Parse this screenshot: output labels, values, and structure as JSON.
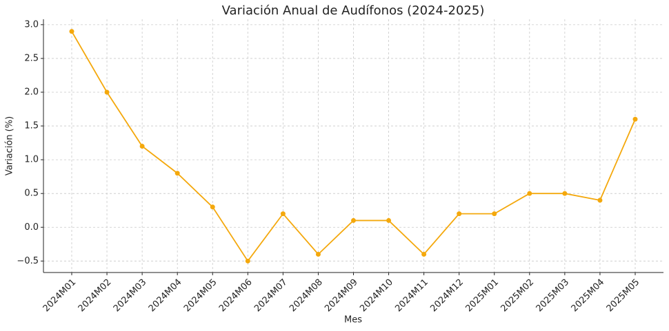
{
  "chart_data": {
    "type": "line",
    "title": "Variación Anual de Audífonos (2024-2025)",
    "x_label": "Mes",
    "y_label": "Variación (%)",
    "categories": [
      "2024M01",
      "2024M02",
      "2024M03",
      "2024M04",
      "2024M05",
      "2024M06",
      "2024M07",
      "2024M08",
      "2024M09",
      "2024M10",
      "2024M11",
      "2024M12",
      "2025M01",
      "2025M02",
      "2025M03",
      "2025M04",
      "2025M05"
    ],
    "values": [
      2.9,
      2.0,
      1.2,
      0.8,
      0.3,
      -0.5,
      0.2,
      -0.4,
      0.1,
      0.1,
      -0.4,
      0.2,
      0.2,
      0.5,
      0.5,
      0.4,
      1.6
    ],
    "color": "#f4a80c",
    "ylim": [
      -0.67,
      3.08
    ],
    "yticks": [
      {
        "value": -0.5,
        "label": "−0.5"
      },
      {
        "value": 0,
        "label": "0.0"
      },
      {
        "value": 0.5,
        "label": "0.5"
      },
      {
        "value": 1,
        "label": "1.0"
      },
      {
        "value": 1.5,
        "label": "1.5"
      },
      {
        "value": 2,
        "label": "2.0"
      },
      {
        "value": 2.5,
        "label": "2.5"
      },
      {
        "value": 3,
        "label": "3.0"
      }
    ],
    "grid": true
  }
}
